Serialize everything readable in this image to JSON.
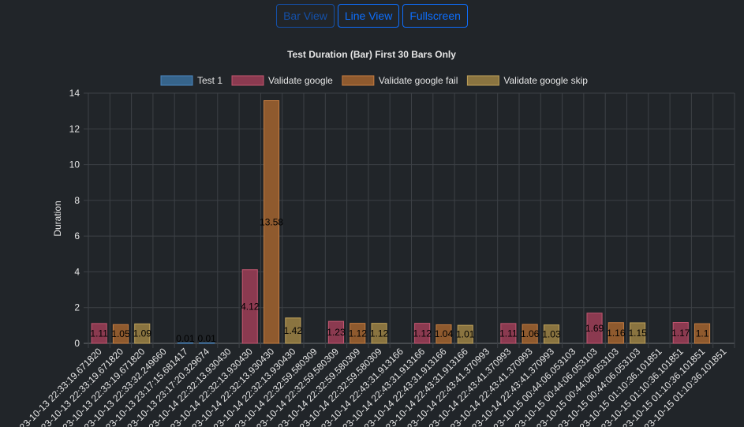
{
  "toolbar": {
    "bar_view": "Bar View",
    "line_view": "Line View",
    "fullscreen": "Fullscreen"
  },
  "chart_data": {
    "type": "bar",
    "title": "Test Duration (Bar) First 30 Bars Only",
    "xlabel": "",
    "ylabel": "Duration",
    "ylim": [
      0,
      14
    ],
    "yticks": [
      0,
      2,
      4,
      6,
      8,
      10,
      12,
      14
    ],
    "grid": true,
    "legend_position": "top",
    "categories": [
      "2023-10-13 22:33:19.671820",
      "2023-10-13 22:33:19.671820",
      "2023-10-13 22:33:19.671820",
      "2023-10-13 22:33:32.249660",
      "2023-10-13 23:17:15.681417",
      "2023-10-13 23:17:20.329674",
      "2023-10-14 22:32:13.930430",
      "2023-10-14 22:32:13.930430",
      "2023-10-14 22:32:13.930430",
      "2023-10-14 22:32:13.930430",
      "2023-10-14 22:32:59.580309",
      "2023-10-14 22:32:59.580309",
      "2023-10-14 22:32:59.580309",
      "2023-10-14 22:32:59.580309",
      "2023-10-14 22:43:31.913166",
      "2023-10-14 22:43:31.913166",
      "2023-10-14 22:43:31.913166",
      "2023-10-14 22:43:31.913166",
      "2023-10-14 22:43:41.370993",
      "2023-10-14 22:43:41.370993",
      "2023-10-14 22:43:41.370993",
      "2023-10-14 22:43:41.370993",
      "2023-10-15 00:44:06.053103",
      "2023-10-15 00:44:06.053103",
      "2023-10-15 00:44:06.053103",
      "2023-10-15 00:44:06.053103",
      "2023-10-15 01:10:36.101851",
      "2023-10-15 01:10:36.101851",
      "2023-10-15 01:10:36.101851",
      "2023-10-15 01:10:36.101851"
    ],
    "series": [
      {
        "name": "Test 1",
        "color": "#36648b",
        "border": "#4a87c0"
      },
      {
        "name": "Validate google",
        "color": "#8b3a50",
        "border": "#c25670"
      },
      {
        "name": "Validate google fail",
        "color": "#8f5a2e",
        "border": "#c57d41"
      },
      {
        "name": "Validate google skip",
        "color": "#8a7440",
        "border": "#bfa15a"
      }
    ],
    "bars": [
      {
        "series": 1,
        "value": 1.11
      },
      {
        "series": 2,
        "value": 1.05
      },
      {
        "series": 3,
        "value": 1.09
      },
      {
        "series": 0,
        "value": null
      },
      {
        "series": 0,
        "value": 0.01
      },
      {
        "series": 0,
        "value": 0.01
      },
      {
        "series": 0,
        "value": null
      },
      {
        "series": 1,
        "value": 4.12
      },
      {
        "series": 2,
        "value": 13.58
      },
      {
        "series": 3,
        "value": 1.42
      },
      {
        "series": 0,
        "value": null
      },
      {
        "series": 1,
        "value": 1.23
      },
      {
        "series": 2,
        "value": 1.12
      },
      {
        "series": 3,
        "value": 1.12
      },
      {
        "series": 0,
        "value": null
      },
      {
        "series": 1,
        "value": 1.12
      },
      {
        "series": 2,
        "value": 1.04
      },
      {
        "series": 3,
        "value": 1.01
      },
      {
        "series": 0,
        "value": null
      },
      {
        "series": 1,
        "value": 1.11
      },
      {
        "series": 2,
        "value": 1.06
      },
      {
        "series": 3,
        "value": 1.03
      },
      {
        "series": 0,
        "value": null
      },
      {
        "series": 1,
        "value": 1.69
      },
      {
        "series": 2,
        "value": 1.16
      },
      {
        "series": 3,
        "value": 1.15
      },
      {
        "series": 0,
        "value": null
      },
      {
        "series": 1,
        "value": 1.17
      },
      {
        "series": 2,
        "value": 1.1
      },
      {
        "series": 3,
        "value": null
      }
    ]
  }
}
